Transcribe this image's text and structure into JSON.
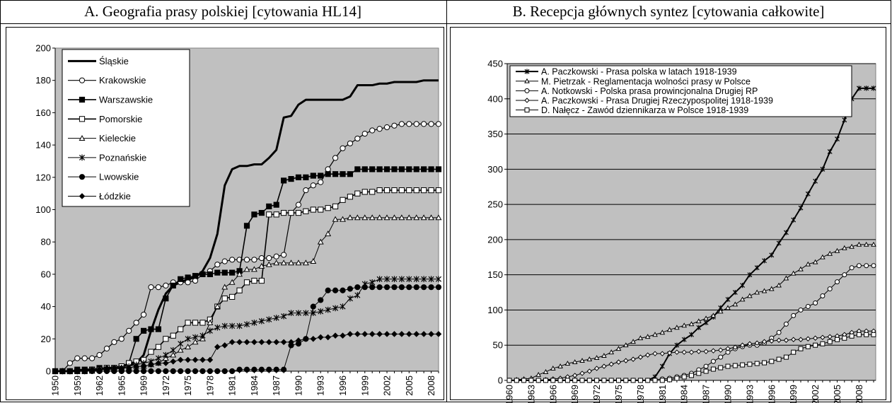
{
  "chart_data": [
    {
      "type": "line",
      "title": "A. Geografia prasy polskiej [cytowania HL14]",
      "categories": [
        "1950",
        null,
        null,
        "1959",
        null,
        null,
        "1962",
        null,
        null,
        "1965",
        null,
        null,
        "1969",
        null,
        null,
        "1972",
        null,
        null,
        "1975",
        null,
        null,
        "1978",
        null,
        null,
        "1981",
        null,
        null,
        "1984",
        null,
        null,
        "1987",
        null,
        null,
        "1990",
        null,
        null,
        "1993",
        null,
        null,
        "1996",
        null,
        null,
        "1999",
        null,
        null,
        "2002",
        null,
        null,
        "2005",
        null,
        null,
        "2008",
        null
      ],
      "ylim": [
        0,
        200
      ],
      "yticks": [
        0,
        20,
        40,
        60,
        80,
        100,
        120,
        140,
        160,
        180,
        200
      ],
      "grid": false,
      "plot_background": "#c0c0c0",
      "legend": "upper left",
      "series": [
        {
          "name": "Śląskie",
          "color": "#000000",
          "marker": "none",
          "line_width": 3,
          "values": [
            0,
            0,
            0,
            0,
            1,
            1,
            1,
            2,
            2,
            3,
            4,
            5,
            10,
            25,
            38,
            48,
            53,
            55,
            57,
            58,
            62,
            70,
            85,
            115,
            125,
            127,
            127,
            128,
            128,
            132,
            137,
            157,
            158,
            165,
            168,
            168,
            168,
            168,
            168,
            168,
            170,
            177,
            177,
            177,
            178,
            178,
            179,
            179,
            179,
            179,
            180,
            180,
            180
          ]
        },
        {
          "name": "Krakowskie",
          "color": "#000000",
          "marker": "circle-open",
          "line_width": 1.2,
          "values": [
            0,
            0,
            5,
            8,
            8,
            8,
            10,
            14,
            18,
            20,
            25,
            30,
            35,
            52,
            52,
            53,
            55,
            55,
            55,
            56,
            60,
            62,
            66,
            68,
            69,
            69,
            69,
            69,
            70,
            70,
            71,
            72,
            98,
            103,
            112,
            115,
            117,
            125,
            132,
            138,
            141,
            144,
            147,
            149,
            150,
            151,
            152,
            153,
            153,
            153,
            153,
            153,
            153
          ]
        },
        {
          "name": "Warszawskie",
          "color": "#000000",
          "marker": "square",
          "line_width": 1.6,
          "values": [
            0,
            0,
            0,
            1,
            1,
            1,
            2,
            2,
            2,
            3,
            5,
            20,
            25,
            26,
            26,
            45,
            53,
            57,
            58,
            59,
            60,
            60,
            61,
            61,
            61,
            62,
            90,
            97,
            98,
            102,
            103,
            118,
            119,
            120,
            120,
            121,
            121,
            122,
            122,
            122,
            122,
            125,
            125,
            125,
            125,
            125,
            125,
            125,
            125,
            125,
            125,
            125,
            125
          ]
        },
        {
          "name": "Pomorskie",
          "color": "#000000",
          "marker": "square-open",
          "line_width": 1.6,
          "values": [
            0,
            0,
            0,
            0,
            0,
            1,
            1,
            2,
            2,
            3,
            5,
            6,
            7,
            12,
            15,
            20,
            22,
            26,
            30,
            30,
            30,
            32,
            40,
            45,
            46,
            50,
            55,
            56,
            56,
            97,
            97,
            98,
            98,
            98,
            99,
            100,
            100,
            101,
            102,
            106,
            108,
            110,
            111,
            111,
            112,
            112,
            112,
            112,
            112,
            112,
            112,
            112,
            112
          ]
        },
        {
          "name": "Kieleckie",
          "color": "#000000",
          "marker": "triangle-open",
          "line_width": 1,
          "values": [
            0,
            0,
            0,
            0,
            0,
            0,
            1,
            1,
            1,
            2,
            2,
            3,
            3,
            4,
            5,
            8,
            10,
            13,
            15,
            18,
            20,
            30,
            40,
            52,
            55,
            60,
            63,
            63,
            65,
            66,
            67,
            67,
            67,
            67,
            67,
            68,
            80,
            85,
            94,
            94,
            95,
            95,
            95,
            95,
            95,
            95,
            95,
            95,
            95,
            95,
            95,
            95,
            95
          ]
        },
        {
          "name": "Poznańskie",
          "color": "#000000",
          "marker": "star",
          "line_width": 1,
          "values": [
            0,
            0,
            0,
            0,
            0,
            1,
            1,
            1,
            2,
            2,
            3,
            4,
            5,
            6,
            8,
            10,
            13,
            17,
            20,
            21,
            22,
            25,
            27,
            28,
            28,
            28,
            29,
            30,
            31,
            32,
            33,
            34,
            36,
            36,
            36,
            36,
            37,
            38,
            39,
            40,
            45,
            47,
            54,
            55,
            57,
            57,
            57,
            57,
            57,
            57,
            57,
            57,
            57
          ]
        },
        {
          "name": "Lwowskie",
          "color": "#000000",
          "marker": "circle",
          "line_width": 1,
          "values": [
            0,
            0,
            0,
            0,
            0,
            0,
            0,
            0,
            0,
            0,
            0,
            0,
            0,
            0,
            0,
            0,
            0,
            0,
            0,
            0,
            0,
            0,
            0,
            0,
            0,
            1,
            1,
            1,
            1,
            1,
            1,
            1,
            16,
            17,
            20,
            40,
            44,
            50,
            50,
            50,
            51,
            52,
            52,
            52,
            52,
            52,
            52,
            52,
            52,
            52,
            52,
            52,
            52
          ]
        },
        {
          "name": "Łódzkie",
          "color": "#000000",
          "marker": "diamond",
          "line_width": 1,
          "values": [
            0,
            0,
            0,
            0,
            0,
            1,
            1,
            2,
            2,
            2,
            2,
            3,
            3,
            4,
            5,
            5,
            6,
            7,
            7,
            7,
            7,
            7,
            15,
            16,
            18,
            18,
            18,
            18,
            18,
            18,
            18,
            18,
            18,
            19,
            20,
            20,
            21,
            21,
            22,
            22,
            23,
            23,
            23,
            23,
            23,
            23,
            23,
            23,
            23,
            23,
            23,
            23,
            23
          ]
        }
      ]
    },
    {
      "type": "line",
      "title": "B. Recepcja głównych syntez [cytowania całkowite]",
      "categories": [
        "1960",
        null,
        null,
        "1963",
        null,
        null,
        "1966",
        null,
        null,
        "1969",
        null,
        null,
        "1972",
        null,
        null,
        "1975",
        null,
        null,
        "1978",
        null,
        null,
        "1981",
        null,
        null,
        "1984",
        null,
        null,
        "1987",
        null,
        null,
        "1990",
        null,
        null,
        "1993",
        null,
        null,
        "1996",
        null,
        null,
        "1999",
        null,
        null,
        "2002",
        null,
        null,
        "2005",
        null,
        null,
        "2008",
        null,
        null
      ],
      "ylim": [
        0,
        450
      ],
      "yticks": [
        0,
        50,
        100,
        150,
        200,
        250,
        300,
        350,
        400,
        450
      ],
      "grid": true,
      "plot_background": "#c0c0c0",
      "legend": "upper left",
      "series": [
        {
          "name": "A. Paczkowski - Prasa polska w latach 1918-1939",
          "color": "#000000",
          "marker": "star",
          "line_width": 2,
          "values": [
            0,
            0,
            0,
            0,
            0,
            0,
            0,
            0,
            0,
            0,
            0,
            0,
            0,
            0,
            0,
            0,
            0,
            0,
            0,
            0,
            5,
            20,
            38,
            50,
            58,
            65,
            75,
            82,
            90,
            103,
            115,
            125,
            135,
            150,
            160,
            170,
            178,
            195,
            210,
            228,
            245,
            265,
            283,
            300,
            325,
            343,
            370,
            400,
            415,
            415,
            415
          ]
        },
        {
          "name": "M. Pietrzak - Reglamentacja wolności prasy w Polsce",
          "color": "#000000",
          "marker": "triangle-open",
          "line_width": 1,
          "values": [
            0,
            1,
            2,
            3,
            8,
            12,
            17,
            20,
            24,
            26,
            28,
            30,
            32,
            35,
            40,
            45,
            50,
            55,
            60,
            62,
            65,
            68,
            72,
            75,
            78,
            80,
            84,
            88,
            92,
            98,
            103,
            108,
            115,
            120,
            125,
            127,
            130,
            135,
            145,
            152,
            158,
            165,
            168,
            175,
            180,
            184,
            188,
            190,
            193,
            193,
            193
          ]
        },
        {
          "name": "A. Notkowski - Polska prasa prowincjonalna Drugiej RP",
          "color": "#000000",
          "marker": "circle-open",
          "line_width": 1,
          "values": [
            0,
            0,
            0,
            0,
            0,
            0,
            0,
            0,
            0,
            0,
            0,
            0,
            0,
            0,
            0,
            0,
            0,
            0,
            0,
            0,
            1,
            2,
            3,
            5,
            7,
            10,
            15,
            20,
            27,
            33,
            40,
            45,
            48,
            50,
            50,
            53,
            60,
            68,
            80,
            92,
            100,
            105,
            110,
            120,
            130,
            140,
            150,
            160,
            163,
            163,
            163
          ]
        },
        {
          "name": "A. Paczkowski - Prasa Drugiej Rzeczypospolitej 1918-1939",
          "color": "#000000",
          "marker": "diamond-open",
          "line_width": 1,
          "values": [
            0,
            0,
            0,
            0,
            0,
            1,
            2,
            3,
            5,
            7,
            10,
            13,
            17,
            20,
            23,
            26,
            28,
            30,
            33,
            36,
            38,
            38,
            39,
            40,
            40,
            40,
            41,
            41,
            42,
            43,
            45,
            47,
            50,
            52,
            53,
            55,
            56,
            57,
            57,
            58,
            58,
            59,
            60,
            61,
            62,
            63,
            65,
            68,
            70,
            70,
            70
          ]
        },
        {
          "name": "D. Nałęcz - Zawód dziennikarza w Polsce 1918-1939",
          "color": "#000000",
          "marker": "square-open",
          "line_width": 1,
          "values": [
            0,
            0,
            0,
            0,
            0,
            0,
            0,
            0,
            0,
            0,
            0,
            0,
            0,
            0,
            0,
            0,
            0,
            0,
            0,
            0,
            0,
            0,
            1,
            3,
            5,
            7,
            10,
            13,
            16,
            18,
            20,
            21,
            22,
            23,
            24,
            25,
            27,
            30,
            33,
            40,
            45,
            48,
            50,
            52,
            55,
            58,
            60,
            63,
            65,
            65,
            65
          ]
        }
      ]
    }
  ]
}
